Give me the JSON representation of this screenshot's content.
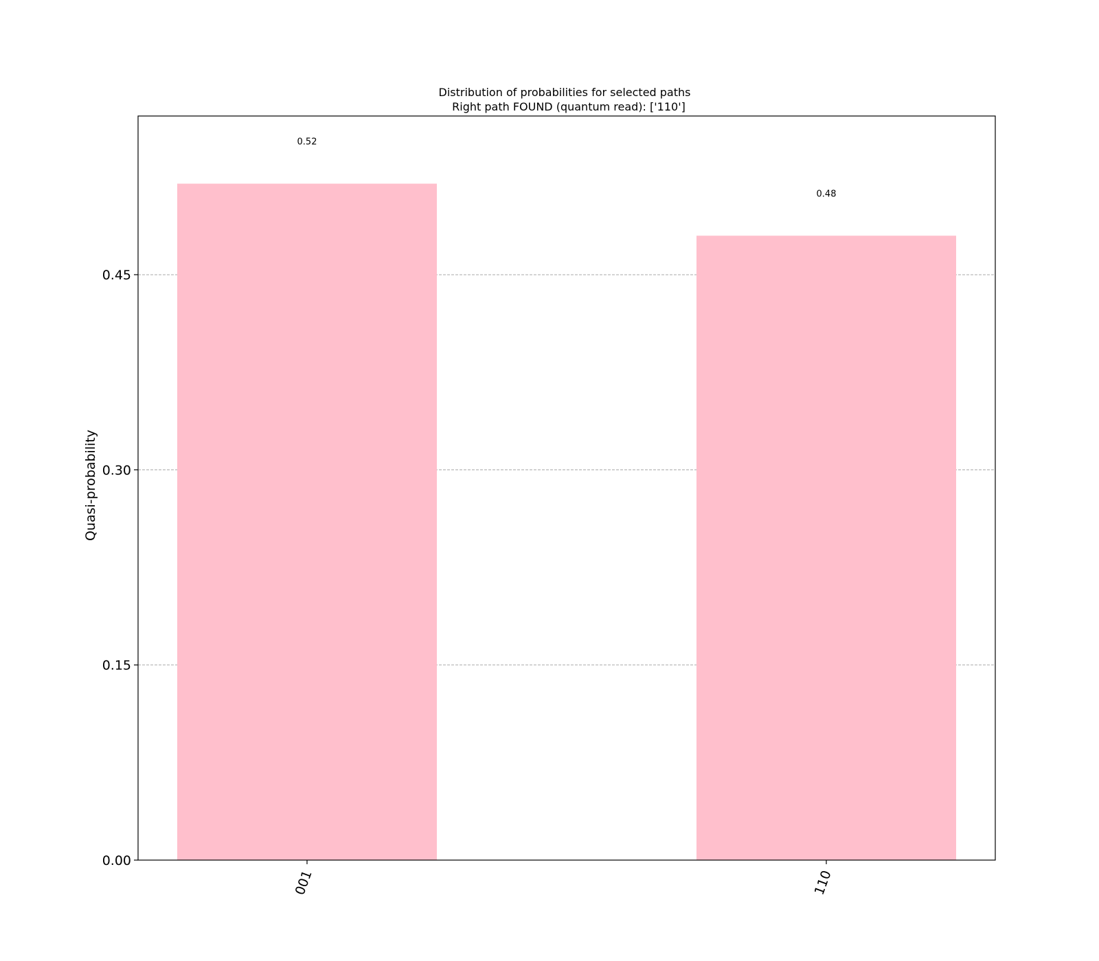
{
  "chart_data": {
    "type": "bar",
    "title": "Distribution of probabilities for selected paths",
    "subtitle": "Right path FOUND (quantum read): ['110']",
    "xlabel": "",
    "ylabel": "Quasi-probability",
    "categories": [
      "001",
      "110"
    ],
    "values": [
      0.52,
      0.48
    ],
    "value_labels": [
      "0.52",
      "0.48"
    ],
    "ylim": [
      0,
      0.572
    ],
    "yticks": [
      0.0,
      0.15,
      0.3,
      0.45
    ],
    "ytick_labels": [
      "0.00",
      "0.15",
      "0.30",
      "0.45"
    ],
    "grid": "y-dashed",
    "bar_color": "#ffbfcc",
    "grid_color": "#aaaaaa"
  }
}
